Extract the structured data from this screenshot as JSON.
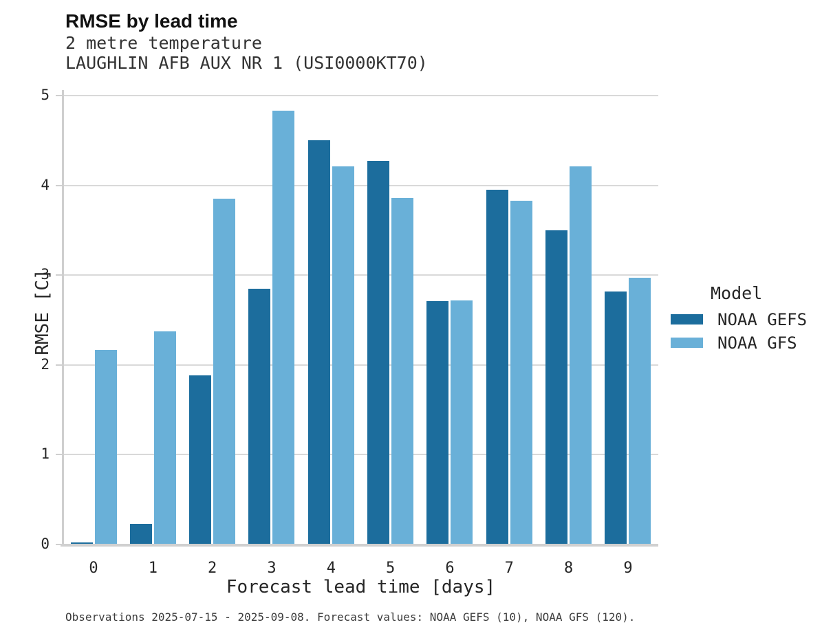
{
  "header": {
    "title": "RMSE by lead time",
    "subtitle_line1": "2 metre temperature",
    "subtitle_line2": "LAUGHLIN AFB AUX NR 1 (USI0000KT70)"
  },
  "chart_data": {
    "type": "bar",
    "title": "RMSE by lead time",
    "subtitle": [
      "2 metre temperature",
      "LAUGHLIN AFB AUX NR 1 (USI0000KT70)"
    ],
    "categories": [
      "0",
      "1",
      "2",
      "3",
      "4",
      "5",
      "6",
      "7",
      "8",
      "9"
    ],
    "series": [
      {
        "name": "NOAA GEFS",
        "color": "#1c6d9d",
        "values": [
          0.02,
          0.23,
          1.88,
          2.85,
          4.5,
          4.27,
          2.71,
          3.95,
          3.5,
          2.82
        ]
      },
      {
        "name": "NOAA GFS",
        "color": "#69b0d8",
        "values": [
          2.17,
          2.37,
          3.85,
          4.83,
          4.21,
          3.86,
          2.72,
          3.83,
          4.21,
          2.97
        ]
      }
    ],
    "xlabel": "Forecast lead time [days]",
    "ylabel": "RMSE [C]",
    "ylim": [
      0,
      5
    ],
    "yticks": [
      0,
      1,
      2,
      3,
      4,
      5
    ],
    "grid": true,
    "legend_title": "Model",
    "legend_position": "right",
    "colors": {
      "noaa_gefs": "#1c6d9d",
      "noaa_gfs": "#69b0d8",
      "gridline": "#d9d9d9",
      "axis_spine": "#d0d0d0"
    }
  },
  "legend": {
    "title": "Model",
    "items": [
      {
        "label": "NOAA GEFS",
        "color": "#1c6d9d"
      },
      {
        "label": "NOAA GFS",
        "color": "#69b0d8"
      }
    ]
  },
  "footnote": "Observations 2025-07-15 - 2025-09-08. Forecast values: NOAA GEFS (10), NOAA GFS (120)."
}
